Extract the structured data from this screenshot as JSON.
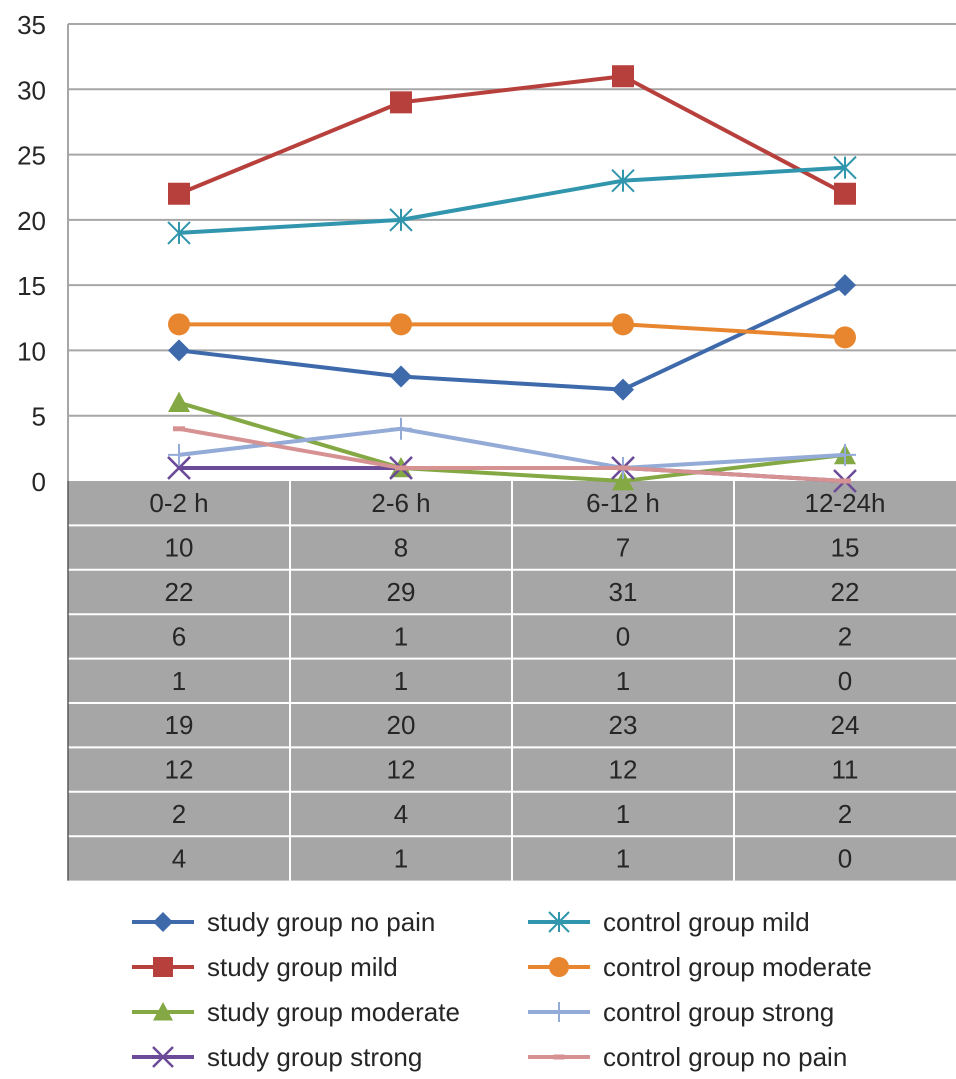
{
  "chart_data": {
    "type": "line",
    "categories": [
      "0-2 h",
      "2-6 h",
      "6-12 h",
      "12-24h"
    ],
    "ylim": [
      0,
      35
    ],
    "yticks": [
      0,
      5,
      10,
      15,
      20,
      25,
      30,
      35
    ],
    "grid": true,
    "legend_position": "bottom",
    "data_table": true,
    "series": [
      {
        "name": "study group no pain",
        "values": [
          10,
          8,
          7,
          15
        ],
        "color": "#3e6aac",
        "marker": "diamond"
      },
      {
        "name": "study group mild",
        "values": [
          22,
          29,
          31,
          22
        ],
        "color": "#b8403c",
        "marker": "square"
      },
      {
        "name": "study group moderate",
        "values": [
          6,
          1,
          0,
          2
        ],
        "color": "#84a844",
        "marker": "triangle"
      },
      {
        "name": "study group strong",
        "values": [
          1,
          1,
          1,
          0
        ],
        "color": "#6b4b97",
        "marker": "x"
      },
      {
        "name": "control group mild",
        "values": [
          19,
          20,
          23,
          24
        ],
        "color": "#3196ad",
        "marker": "asterisk"
      },
      {
        "name": "control group moderate",
        "values": [
          12,
          12,
          12,
          11
        ],
        "color": "#e8862f",
        "marker": "circle"
      },
      {
        "name": "control group strong",
        "values": [
          2,
          4,
          1,
          2
        ],
        "color": "#93abd6",
        "marker": "plus"
      },
      {
        "name": "control group no pain",
        "values": [
          4,
          1,
          1,
          0
        ],
        "color": "#d69292",
        "marker": "dash"
      }
    ]
  }
}
